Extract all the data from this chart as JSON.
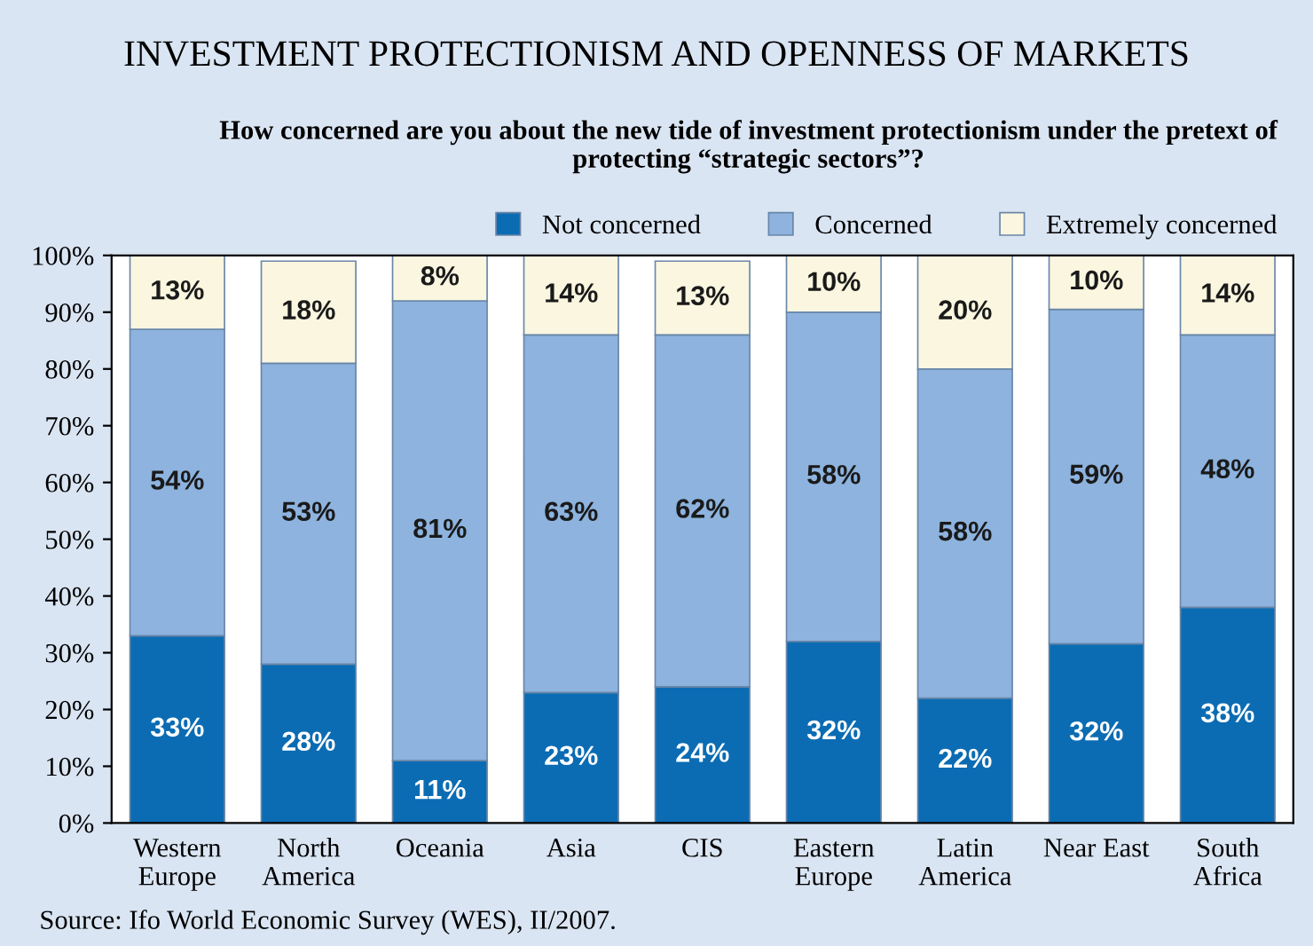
{
  "chart_data": {
    "type": "bar",
    "stacked": true,
    "title": "INVESTMENT PROTECTIONISM AND OPENNESS OF MARKETS",
    "subtitle": "How concerned are you about the new tide of investment protectionism under the pretext of protecting “strategic sectors”?",
    "categories": [
      "Western\nEurope",
      "North\nAmerica",
      "Oceania",
      "Asia",
      "CIS",
      "Eastern\nEurope",
      "Latin\nAmerica",
      "Near East",
      "South\nAfrica"
    ],
    "series": [
      {
        "name": "Not concerned",
        "color": "#0b6cb3",
        "values": [
          33,
          28,
          11,
          23,
          24,
          32,
          22,
          31.6,
          38
        ],
        "value_labels": [
          "33%",
          "28%",
          "11%",
          "23%",
          "24%",
          "32%",
          "22%",
          "32%",
          "38%"
        ]
      },
      {
        "name": "Concerned",
        "color": "#8db3de",
        "values": [
          54,
          53,
          81,
          63,
          62,
          58,
          58,
          58.9,
          48
        ],
        "value_labels": [
          "54%",
          "53%",
          "81%",
          "63%",
          "62%",
          "58%",
          "58%",
          "59%",
          "48%"
        ]
      },
      {
        "name": "Extremely concerned",
        "color": "#faf6e0",
        "values": [
          13,
          18,
          8,
          14,
          13,
          10,
          20,
          9.5,
          14
        ],
        "value_labels": [
          "13%",
          "18%",
          "8%",
          "14%",
          "13%",
          "10%",
          "20%",
          "10%",
          "14%"
        ]
      }
    ],
    "ylim": [
      0,
      100
    ],
    "yticks": [
      {
        "value": 0,
        "label": "0%"
      },
      {
        "value": 10,
        "label": "10%"
      },
      {
        "value": 20,
        "label": "20%"
      },
      {
        "value": 30,
        "label": "30%"
      },
      {
        "value": 40,
        "label": "40%"
      },
      {
        "value": 50,
        "label": "50%"
      },
      {
        "value": 60,
        "label": "60%"
      },
      {
        "value": 70,
        "label": "70%"
      },
      {
        "value": 80,
        "label": "80%"
      },
      {
        "value": 90,
        "label": "90%"
      },
      {
        "value": 100,
        "label": "100%"
      }
    ],
    "legend": "top",
    "annotations": [
      "Source: Ifo World Economic Survey (WES), II/2007."
    ]
  }
}
